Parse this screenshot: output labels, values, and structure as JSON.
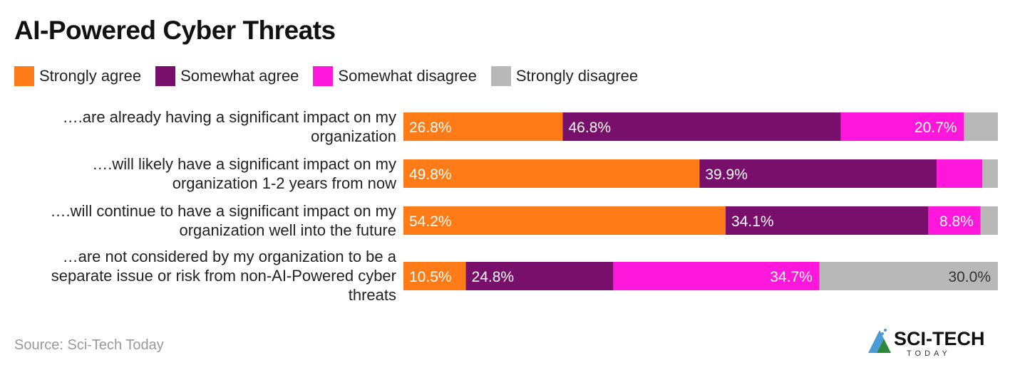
{
  "chart_data": {
    "type": "bar",
    "orientation": "horizontal",
    "stacked": true,
    "title": "AI-Powered Cyber Threats",
    "legend_position": "top-left",
    "grid": false,
    "xlim": [
      0,
      100
    ],
    "categories": [
      "….are already having a significant impact on my organization",
      "….will likely have a significant impact on my organization 1-2 years from now",
      "….will continue to have a significant impact on my organization well into the future",
      "…are not considered by my organization to be a separate issue or risk from non-AI-Powered cyber threats"
    ],
    "series": [
      {
        "name": "Strongly agree",
        "color": "#ff7b17",
        "values": [
          26.8,
          49.8,
          54.2,
          10.5
        ],
        "labels": [
          "26.8%",
          "49.8%",
          "54.2%",
          "10.5%"
        ]
      },
      {
        "name": "Somewhat agree",
        "color": "#770f6b",
        "values": [
          46.8,
          39.9,
          34.1,
          24.8
        ],
        "labels": [
          "46.8%",
          "39.9%",
          "34.1%",
          "24.8%"
        ]
      },
      {
        "name": "Somewhat disagree",
        "color": "#ff18dc",
        "values": [
          20.7,
          7.7,
          8.8,
          34.7
        ],
        "labels": [
          "20.7%",
          "",
          "8.8%",
          "34.7%"
        ]
      },
      {
        "name": "Strongly disagree",
        "color": "#b8b8b8",
        "values": [
          5.7,
          2.6,
          2.9,
          30.0
        ],
        "labels": [
          "",
          "",
          "",
          "30.0%"
        ]
      }
    ]
  },
  "category_lines": [
    [
      "….are already having a significant impact on my",
      "organization"
    ],
    [
      "….will likely have a significant impact on my",
      "organization 1-2 years from now"
    ],
    [
      "….will continue to have a significant impact on my",
      "organization well into the future"
    ],
    [
      "…are not considered by my organization to be a",
      "separate issue or risk from non-AI-Powered cyber",
      "threats"
    ]
  ],
  "source": "Source: Sci-Tech Today",
  "logo": {
    "text": "SCI-TECH",
    "subtext": "TODAY"
  }
}
